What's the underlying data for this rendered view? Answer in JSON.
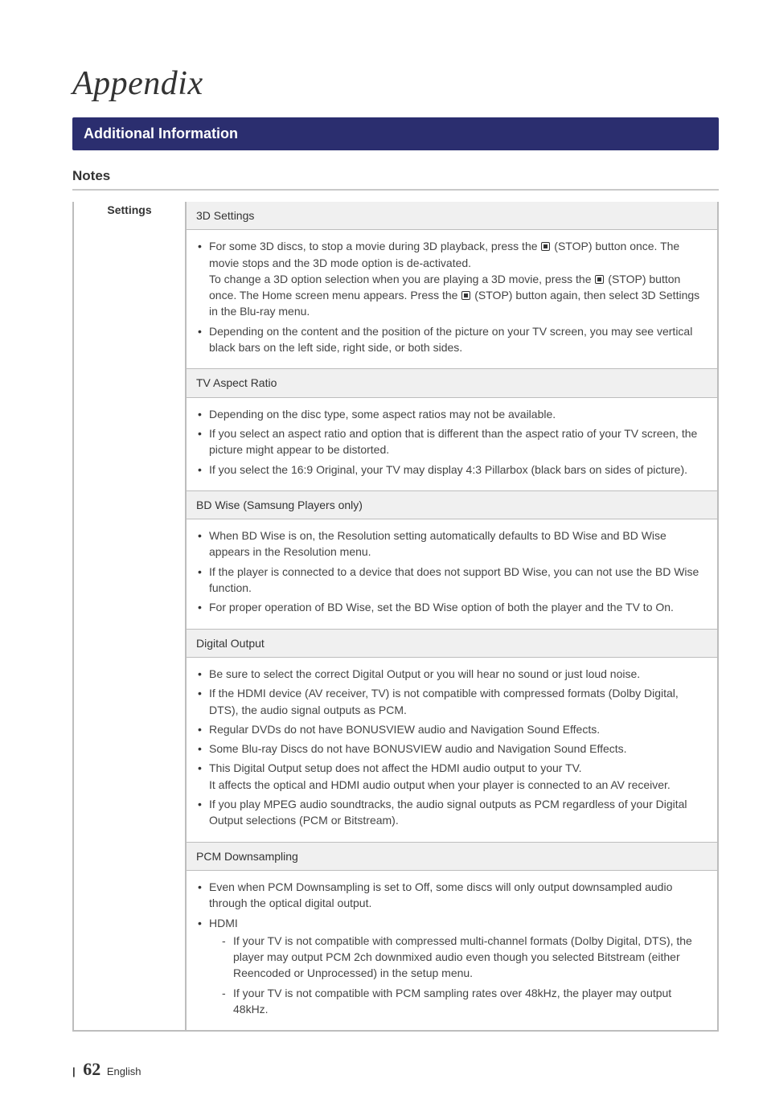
{
  "chapter_title": "Appendix",
  "section_bar": "Additional Information",
  "subheading": "Notes",
  "left_label": "Settings",
  "rows": {
    "r0": {
      "title": "3D Settings",
      "b0a": "For some 3D discs, to stop a movie during 3D playback, press the ",
      "b0b": " (STOP) button once. The movie stops and the 3D mode option is de-activated.",
      "b0c": "To change a 3D option selection when you are playing a 3D movie, press the ",
      "b0d": " (STOP) button once. The Home screen menu appears. Press the ",
      "b0e": " (STOP) button again, then select 3D Settings in the Blu-ray menu.",
      "b1": "Depending on the content and the position of the picture on your TV screen, you may see vertical black bars on the left side, right side, or both sides."
    },
    "r1": {
      "title": "TV Aspect Ratio",
      "b0": "Depending on the disc type, some aspect ratios may not be available.",
      "b1": "If you select an aspect ratio and option that is different than the aspect ratio of your TV screen, the picture might appear to be distorted.",
      "b2": "If you select the 16:9 Original, your TV may display 4:3 Pillarbox (black bars on sides of picture)."
    },
    "r2": {
      "title": "BD Wise (Samsung Players only)",
      "b0": "When BD Wise is on, the Resolution setting automatically defaults to BD Wise and BD Wise appears in the Resolution menu.",
      "b1": "If the player is connected to a device that does not support BD Wise, you can not use the BD Wise function.",
      "b2": "For proper operation of BD Wise, set the BD Wise option of both the player and the TV to On."
    },
    "r3": {
      "title": "Digital Output",
      "b0": "Be sure to select the correct Digital Output or you will hear no sound or just loud noise.",
      "b1": "If the HDMI device (AV receiver, TV) is not compatible with compressed formats (Dolby Digital, DTS), the audio signal outputs as PCM.",
      "b2": "Regular DVDs do not have BONUSVIEW audio and Navigation Sound Effects.",
      "b3": "Some Blu-ray Discs do not have BONUSVIEW audio and Navigation Sound Effects.",
      "b4a": "This Digital Output setup does not affect the HDMI audio output to your TV.",
      "b4b": "It affects the optical and HDMI audio output when your player is connected to an AV receiver.",
      "b5": "If you play MPEG audio soundtracks, the audio signal outputs as PCM regardless of your Digital Output selections (PCM or Bitstream)."
    },
    "r4": {
      "title": "PCM Downsampling",
      "b0": "Even when PCM Downsampling is set to Off, some discs will only output downsampled audio through the optical digital output.",
      "b1": "HDMI",
      "d0": "If your TV is not compatible with compressed multi-channel formats (Dolby Digital, DTS), the player may output PCM 2ch downmixed audio even though you selected Bitstream (either Reencoded or Unprocessed) in the setup menu.",
      "d1": "If your TV is not compatible with PCM sampling rates over 48kHz, the player may output 48kHz."
    }
  },
  "footer": {
    "page_number": "62",
    "lang": "English",
    "bar": "|"
  }
}
